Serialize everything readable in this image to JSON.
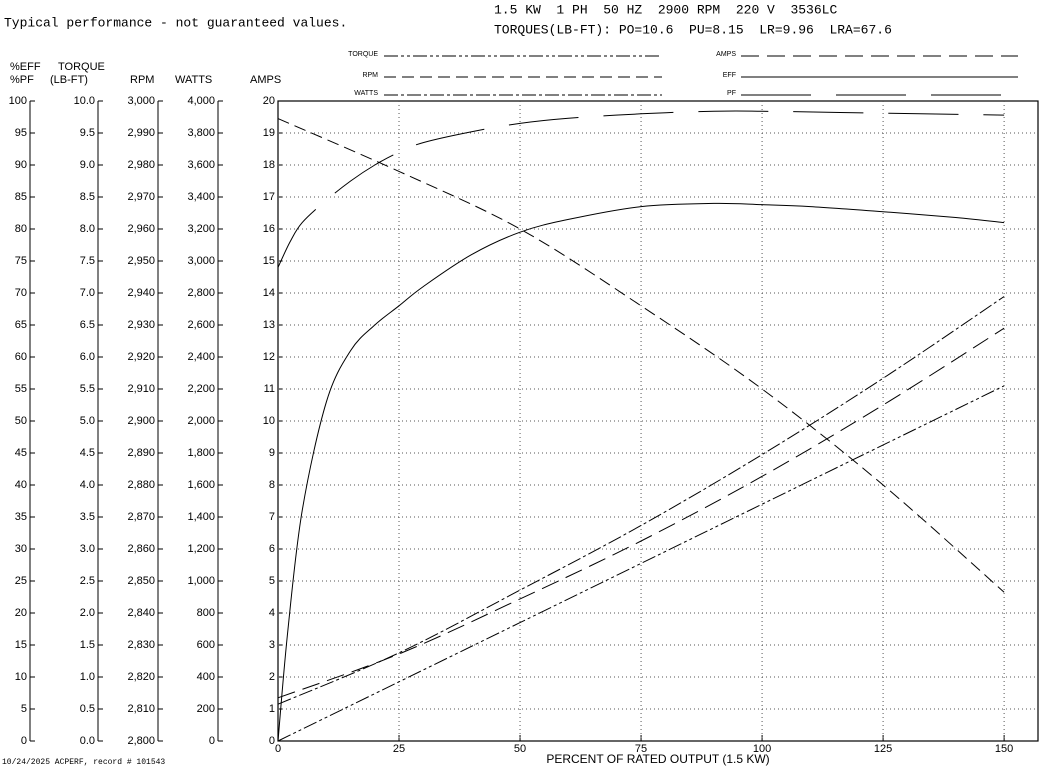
{
  "chart_data": {
    "type": "line",
    "note": "Typical performance - not guaranteed values.",
    "title": "1.5 KW  1 PH  50 HZ  2900 RPM  220 V  3536LC",
    "subtitle": "TORQUES(LB-FT): PO=10.6  PU=8.15  LR=9.96  LRA=67.6",
    "footer": "10/24/2025 ACPERF, record # 101543",
    "x_label": "PERCENT OF RATED OUTPUT (1.5 KW)",
    "xlim": [
      0,
      157
    ],
    "xticks": [
      0,
      25,
      50,
      75,
      100,
      125,
      150
    ],
    "grid": true,
    "y_axes": [
      {
        "label": [
          "%EFF",
          "%PF"
        ],
        "ylim": [
          0,
          100
        ],
        "yticks": [
          0,
          5,
          10,
          15,
          20,
          25,
          30,
          35,
          40,
          45,
          50,
          55,
          60,
          65,
          70,
          75,
          80,
          85,
          90,
          95,
          100
        ]
      },
      {
        "label": [
          "TORQUE",
          "(LB-FT)"
        ],
        "ylim": [
          0,
          10
        ],
        "yticks": [
          {
            "value": 0,
            "label": "0.0"
          },
          0.5,
          {
            "value": 1,
            "label": "1.0"
          },
          1.5,
          {
            "value": 2,
            "label": "2.0"
          },
          2.5,
          {
            "value": 3,
            "label": "3.0"
          },
          3.5,
          {
            "value": 4,
            "label": "4.0"
          },
          4.5,
          {
            "value": 5,
            "label": "5.0"
          },
          5.5,
          {
            "value": 6,
            "label": "6.0"
          },
          6.5,
          {
            "value": 7,
            "label": "7.0"
          },
          7.5,
          {
            "value": 8,
            "label": "8.0"
          },
          8.5,
          {
            "value": 9,
            "label": "9.0"
          },
          9.5,
          {
            "value": 10,
            "label": "10.0"
          }
        ]
      },
      {
        "label": [
          "RPM"
        ],
        "ylim": [
          2800,
          3000
        ],
        "yticks": [
          {
            "value": 2800,
            "label": "2,800"
          },
          {
            "value": 2810,
            "label": "2,810"
          },
          {
            "value": 2820,
            "label": "2,820"
          },
          {
            "value": 2830,
            "label": "2,830"
          },
          {
            "value": 2840,
            "label": "2,840"
          },
          {
            "value": 2850,
            "label": "2,850"
          },
          {
            "value": 2860,
            "label": "2,860"
          },
          {
            "value": 2870,
            "label": "2,870"
          },
          {
            "value": 2880,
            "label": "2,880"
          },
          {
            "value": 2890,
            "label": "2,890"
          },
          {
            "value": 2900,
            "label": "2,900"
          },
          {
            "value": 2910,
            "label": "2,910"
          },
          {
            "value": 2920,
            "label": "2,920"
          },
          {
            "value": 2930,
            "label": "2,930"
          },
          {
            "value": 2940,
            "label": "2,940"
          },
          {
            "value": 2950,
            "label": "2,950"
          },
          {
            "value": 2960,
            "label": "2,960"
          },
          {
            "value": 2970,
            "label": "2,970"
          },
          {
            "value": 2980,
            "label": "2,980"
          },
          {
            "value": 2990,
            "label": "2,990"
          },
          {
            "value": 3000,
            "label": "3,000"
          }
        ]
      },
      {
        "label": [
          "WATTS"
        ],
        "ylim": [
          0,
          4000
        ],
        "yticks": [
          0,
          200,
          400,
          600,
          800,
          {
            "value": 1000,
            "label": "1,000"
          },
          {
            "value": 1200,
            "label": "1,200"
          },
          {
            "value": 1400,
            "label": "1,400"
          },
          {
            "value": 1600,
            "label": "1,600"
          },
          {
            "value": 1800,
            "label": "1,800"
          },
          {
            "value": 2000,
            "label": "2,000"
          },
          {
            "value": 2200,
            "label": "2,200"
          },
          {
            "value": 2400,
            "label": "2,400"
          },
          {
            "value": 2600,
            "label": "2,600"
          },
          {
            "value": 2800,
            "label": "2,800"
          },
          {
            "value": 3000,
            "label": "3,000"
          },
          {
            "value": 3200,
            "label": "3,200"
          },
          {
            "value": 3400,
            "label": "3,400"
          },
          {
            "value": 3600,
            "label": "3,600"
          },
          {
            "value": 3800,
            "label": "3,800"
          },
          {
            "value": 4000,
            "label": "4,000"
          }
        ]
      },
      {
        "label": [
          "AMPS"
        ],
        "ylim": [
          0,
          20
        ],
        "yticks": [
          0,
          1,
          2,
          3,
          4,
          5,
          6,
          7,
          8,
          9,
          10,
          11,
          12,
          13,
          14,
          15,
          16,
          17,
          18,
          19,
          20
        ]
      }
    ],
    "series": [
      {
        "name": "TORQUE",
        "axis": 1,
        "color": "#000000",
        "dash": "14 3 3 3 3 3",
        "x": [
          0,
          50,
          100,
          150
        ],
        "values": [
          0,
          1.85,
          3.7,
          5.55
        ]
      },
      {
        "name": "RPM",
        "axis": 2,
        "color": "#000000",
        "dash": "12 6",
        "x": [
          0,
          25,
          50,
          75,
          100,
          125,
          150
        ],
        "values": [
          2994.5,
          2978,
          2960,
          2936,
          2910,
          2880,
          2846.5
        ]
      },
      {
        "name": "WATTS",
        "axis": 3,
        "color": "#000000",
        "dash": "14 3 3 3",
        "x": [
          0,
          25,
          50,
          75,
          100,
          125,
          150
        ],
        "values": [
          230,
          551,
          943,
          1347,
          1790,
          2267,
          2778
        ]
      },
      {
        "name": "AMPS",
        "axis": 4,
        "color": "#000000",
        "dash": "18 8",
        "x": [
          0,
          25,
          50,
          75,
          100,
          125,
          150
        ],
        "values": [
          1.35,
          2.72,
          4.44,
          6.25,
          8.27,
          10.5,
          12.9
        ]
      },
      {
        "name": "EFF",
        "axis": 0,
        "color": "#000000",
        "dash": "none",
        "x": [
          0,
          2,
          5,
          10,
          15,
          20,
          25,
          30,
          40,
          50,
          60,
          75,
          90,
          100,
          110,
          125,
          140,
          150
        ],
        "values": [
          0,
          17,
          36,
          53,
          61,
          65,
          68,
          71,
          76,
          79.5,
          81.5,
          83.5,
          84,
          83.8,
          83.5,
          82.7,
          81.8,
          81
        ]
      },
      {
        "name": "PF",
        "axis": 0,
        "color": "#000000",
        "dash": "70 25",
        "x": [
          0,
          2.5,
          5,
          10,
          15,
          20,
          25,
          30,
          40,
          50,
          60,
          75,
          90,
          100,
          125,
          150
        ],
        "values": [
          74,
          78,
          81,
          84.5,
          87.5,
          90,
          92,
          93.5,
          95.2,
          96.5,
          97.3,
          98,
          98.4,
          98.4,
          98.1,
          97.8
        ]
      }
    ]
  }
}
